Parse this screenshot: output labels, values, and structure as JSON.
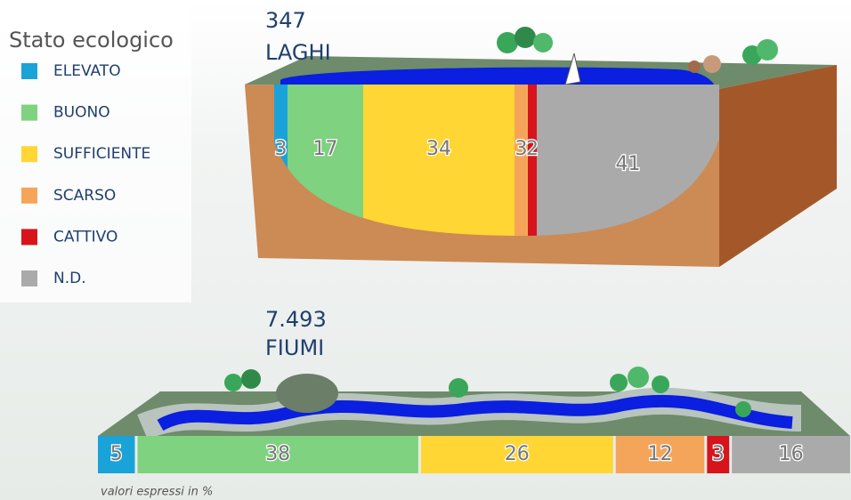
{
  "legend_title": "Stato ecologico",
  "note": "valori espressi in %",
  "chart_data": [
    {
      "type": "lake",
      "count": 347,
      "label": "LAGHI",
      "series": [
        {
          "name": "ELEVATO",
          "color": "#1aa3d9",
          "values": [
            3
          ]
        },
        {
          "name": "BUONO",
          "color": "#7fd27f",
          "values": [
            17
          ]
        },
        {
          "name": "SUFFICIENTE",
          "color": "#ffd633",
          "values": [
            34
          ]
        },
        {
          "name": "SCARSO",
          "color": "#f5a55a",
          "values": [
            3
          ]
        },
        {
          "name": "CATTIVO",
          "color": "#d7141b",
          "values": [
            2
          ]
        },
        {
          "name": "N.D.",
          "color": "#aaaaaa",
          "values": [
            41
          ]
        }
      ]
    },
    {
      "type": "river",
      "count": {
        "value": 7493,
        "label": "7.493"
      },
      "label": "FIUMI",
      "series": [
        {
          "name": "ELEVATO",
          "color": "#1aa3d9",
          "values": [
            5
          ]
        },
        {
          "name": "BUONO",
          "color": "#7fd27f",
          "values": [
            38
          ]
        },
        {
          "name": "SUFFICIENTE",
          "color": "#ffd633",
          "values": [
            26
          ]
        },
        {
          "name": "SCARSO",
          "color": "#f5a55a",
          "values": [
            12
          ]
        },
        {
          "name": "CATTIVO",
          "color": "#d7141b",
          "values": [
            3
          ]
        },
        {
          "name": "N.D.",
          "color": "#aaaaaa",
          "values": [
            16
          ]
        }
      ]
    }
  ]
}
